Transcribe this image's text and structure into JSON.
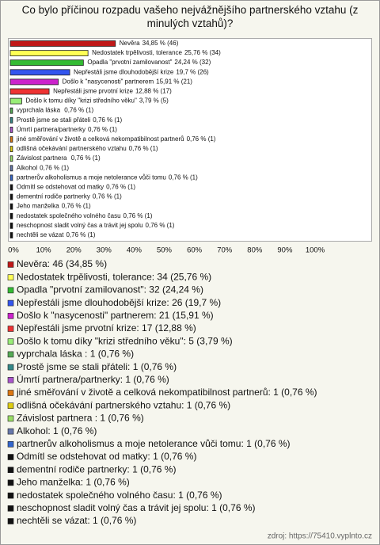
{
  "chart_data": {
    "type": "bar",
    "title": "Co bylo příčinou rozpadu vašeho nejvážnějšího partnerského vztahu (z minulých vztahů)?",
    "categories": [
      "Nevěra",
      "Nedostatek trpělivosti, tolerance",
      "Opadla \"prvotní zamilovanost\"",
      "Nepřestáli jsme dlouhodobější krize",
      "Došlo k \"nasycenosti\" partnerem",
      "Nepřestáli jsme prvotní krize",
      "Došlo k tomu díky \"krizi středního věku\"",
      "vyprchala láska ",
      "Prostě jsme se stali přáteli",
      "Úmrtí partnera/partnerky",
      "jiné směřování v životě a celková nekompatibilnost partnerů",
      "odlišná očekávání partnerského vztahu",
      "Závislost partnera ",
      "Alkohol",
      "partnerův alkoholismus a moje netolerance vůči tomu",
      "Odmítl se odstehovat od matky",
      "dementní rodiče partnerky",
      "Jeho manželka",
      "nedostatek společného volného času",
      "neschopnost sladit volný čas a trávit jej spolu",
      "nechtěli se vázat"
    ],
    "values": [
      34.85,
      25.76,
      24.24,
      19.7,
      15.91,
      12.88,
      3.79,
      0.76,
      0.76,
      0.76,
      0.76,
      0.76,
      0.76,
      0.76,
      0.76,
      0.76,
      0.76,
      0.76,
      0.76,
      0.76,
      0.76
    ],
    "value_labels": [
      "34,85 % (46)",
      "25,76 % (34)",
      "24,24 % (32)",
      "19,7 % (26)",
      "15,91 % (21)",
      "12,88 % (17)",
      "3,79 % (5)",
      "0,76 % (1)",
      "0,76 % (1)",
      "0,76 % (1)",
      "0,76 % (1)",
      "0,76 % (1)",
      "0,76 % (1)",
      "0,76 % (1)",
      "0,76 % (1)",
      "0,76 % (1)",
      "0,76 % (1)",
      "0,76 % (1)",
      "0,76 % (1)",
      "0,76 % (1)",
      "0,76 % (1)"
    ],
    "colors": [
      "#c01818",
      "#ffff55",
      "#33bb33",
      "#3355ee",
      "#cc22cc",
      "#ee3333",
      "#99ee77",
      "#55aa55",
      "#338888",
      "#aa55cc",
      "#dd7711",
      "#ddcc11",
      "#99dd66",
      "#6677aa",
      "#3366cc",
      "#111111",
      "#111111",
      "#111111",
      "#111111",
      "#111111",
      "#111111"
    ],
    "legend": [
      "Nevěra: 46 (34,85 %)",
      "Nedostatek trpělivosti, tolerance: 34 (25,76 %)",
      "Opadla \"prvotní zamilovanost\": 32 (24,24 %)",
      "Nepřestáli jsme dlouhodobější krize: 26 (19,7 %)",
      "Došlo k \"nasycenosti\" partnerem: 21 (15,91 %)",
      "Nepřestáli jsme prvotní krize: 17 (12,88 %)",
      "Došlo k tomu díky \"krizi středního věku\": 5 (3,79 %)",
      "vyprchala láska : 1 (0,76 %)",
      "Prostě jsme se stali přáteli: 1 (0,76 %)",
      "Úmrtí partnera/partnerky: 1 (0,76 %)",
      "jiné směřování v životě a celková nekompatibilnost partnerů: 1 (0,76 %)",
      "odlišná očekávání partnerského vztahu: 1 (0,76 %)",
      "Závislost partnera : 1 (0,76 %)",
      "Alkohol: 1 (0,76 %)",
      "partnerův alkoholismus a moje netolerance vůči tomu: 1 (0,76 %)",
      "Odmítl se odstehovat od matky: 1 (0,76 %)",
      "dementní rodiče partnerky: 1 (0,76 %)",
      "Jeho manželka: 1 (0,76 %)",
      "nedostatek společného volného času: 1 (0,76 %)",
      "neschopnost sladit volný čas a trávit jej spolu: 1 (0,76 %)",
      "nechtěli se vázat: 1 (0,76 %)"
    ],
    "xlim": [
      0,
      100
    ],
    "xticks": [
      {
        "value": 0,
        "label": "0%"
      },
      {
        "value": 10,
        "label": "10%"
      },
      {
        "value": 20,
        "label": "20%"
      },
      {
        "value": 30,
        "label": "30%"
      },
      {
        "value": 40,
        "label": "40%"
      },
      {
        "value": 50,
        "label": "50%"
      },
      {
        "value": 60,
        "label": "60%"
      },
      {
        "value": 70,
        "label": "70%"
      },
      {
        "value": 80,
        "label": "80%"
      },
      {
        "value": 90,
        "label": "90%"
      },
      {
        "value": 100,
        "label": "100%"
      }
    ],
    "source": "zdroj: https://75410.vyplnto.cz"
  }
}
